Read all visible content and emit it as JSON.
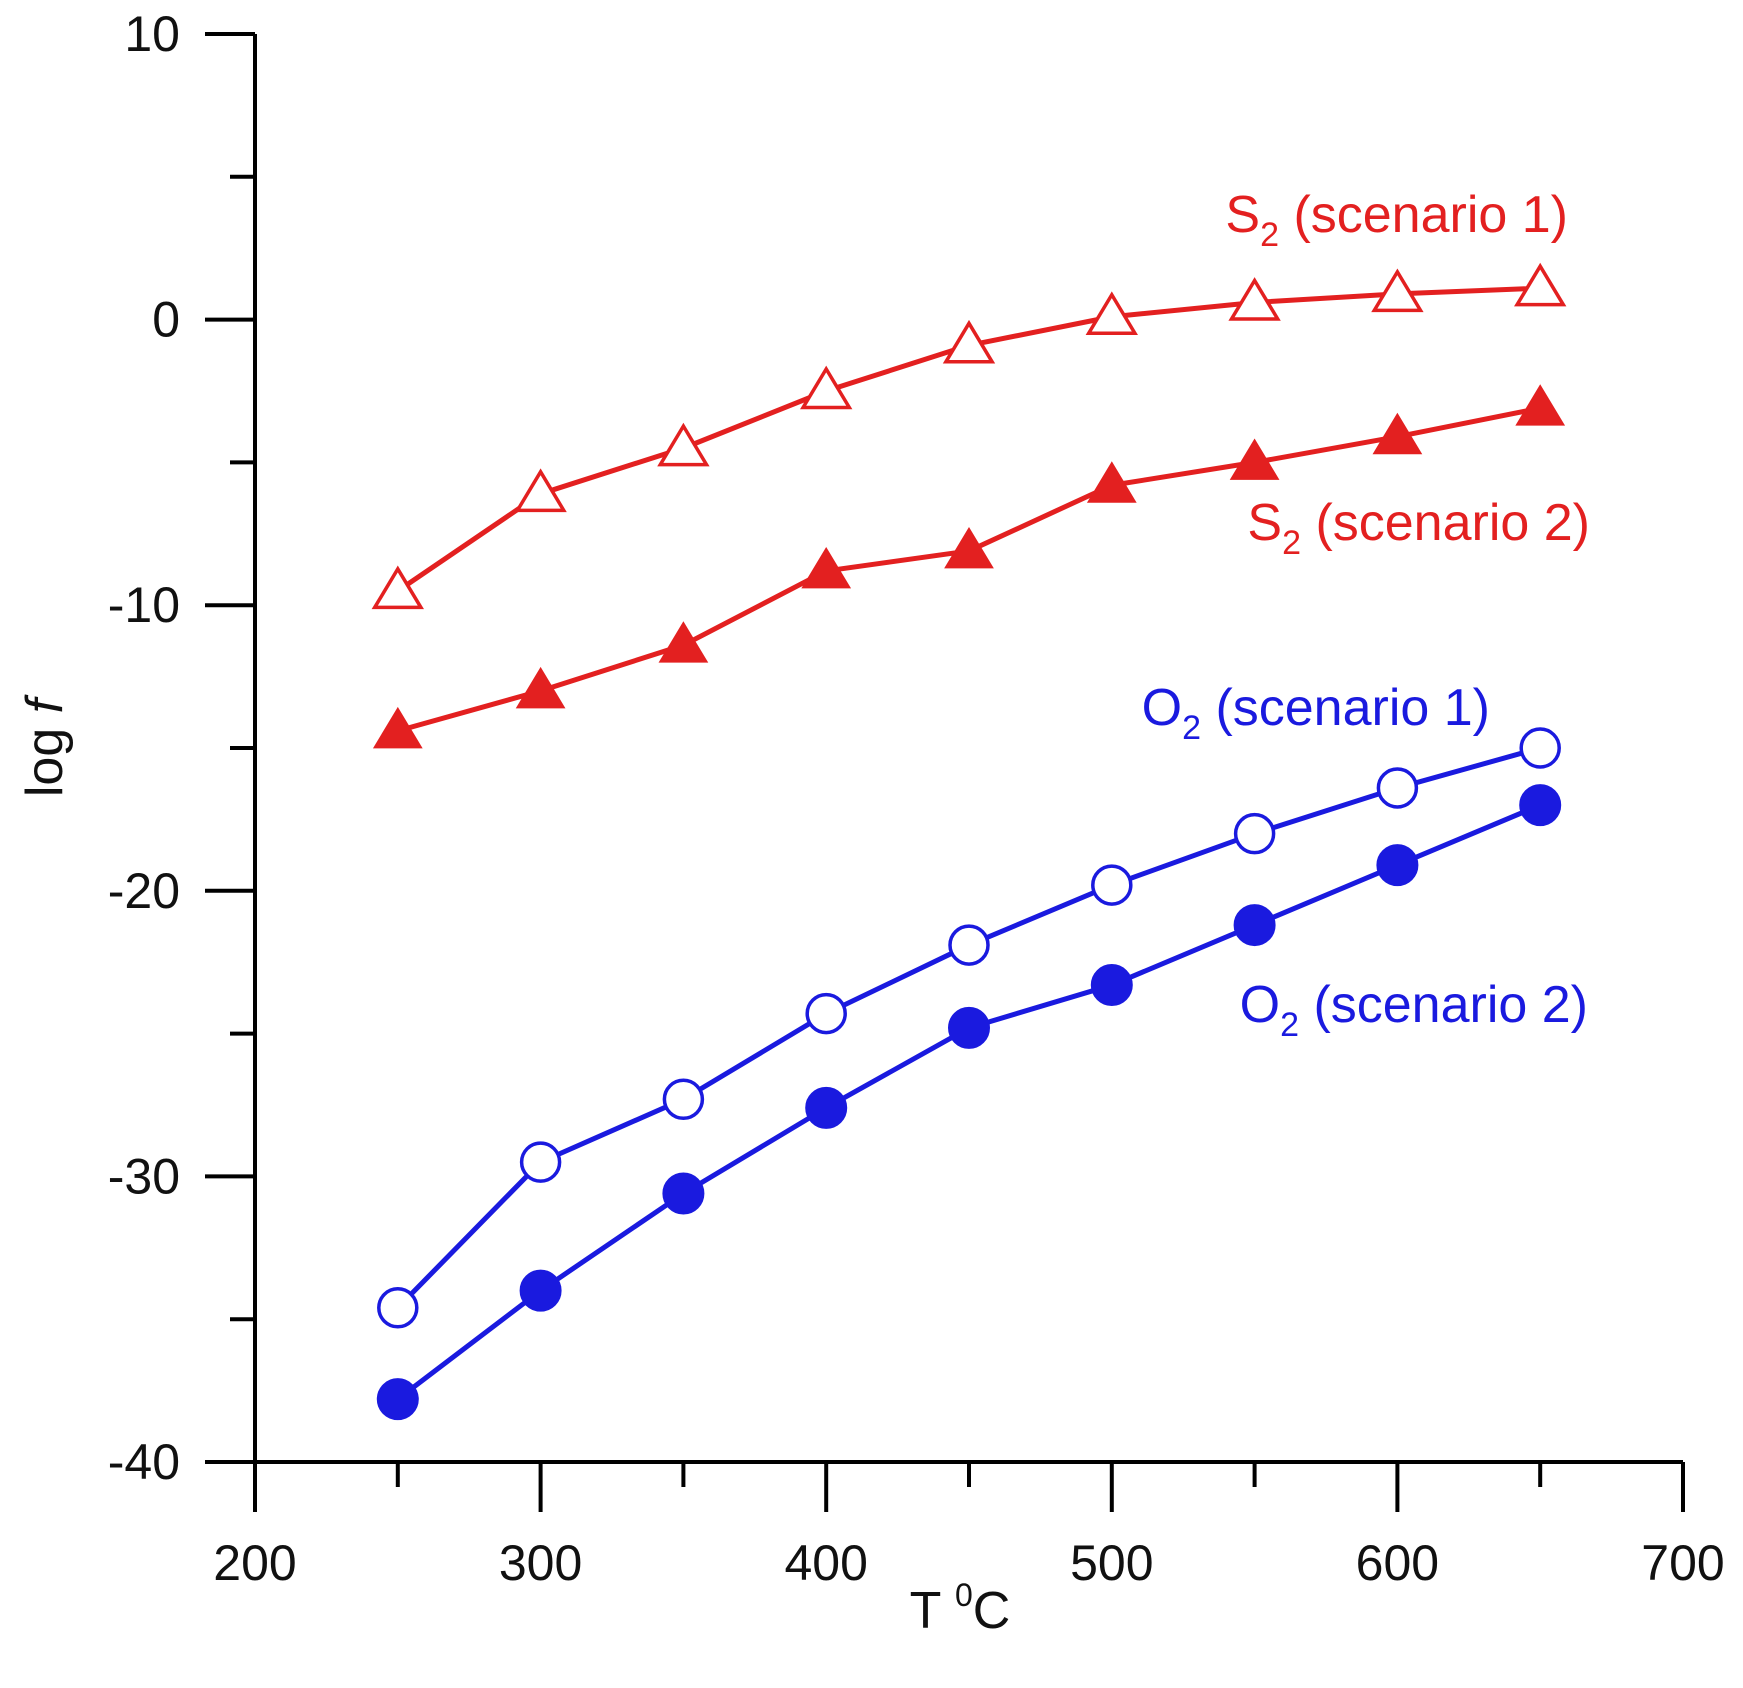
{
  "chart_data": {
    "type": "line",
    "title": "",
    "xlabel": {
      "main": "T ",
      "superscript": "0",
      "unit": "C"
    },
    "ylabel": {
      "main": "log ",
      "italic": "f"
    },
    "xlim": [
      200,
      700
    ],
    "ylim": [
      -40,
      10
    ],
    "xticks": [
      200,
      300,
      400,
      500,
      600,
      700
    ],
    "yticks": [
      10,
      0,
      -10,
      -20,
      -30,
      -40
    ],
    "x": [
      250,
      300,
      350,
      400,
      450,
      500,
      550,
      600,
      650
    ],
    "series": [
      {
        "name": "S2 (scenario 1)",
        "label": {
          "species": "S",
          "subscript": "2",
          "rest": " (scenario 1)"
        },
        "color": "#e32020",
        "marker": "open-triangle",
        "values": [
          -9.5,
          -6.1,
          -4.5,
          -2.5,
          -0.9,
          0.1,
          0.6,
          0.9,
          1.1
        ]
      },
      {
        "name": "S2 (scenario 2)",
        "label": {
          "species": "S",
          "subscript": "2",
          "rest": " (scenario 2)"
        },
        "color": "#e32020",
        "marker": "filled-triangle",
        "values": [
          -14.4,
          -13.0,
          -11.4,
          -8.8,
          -8.1,
          -5.8,
          -5.0,
          -4.1,
          -3.1
        ]
      },
      {
        "name": "O2 (scenario 1)",
        "label": {
          "species": "O",
          "subscript": "2",
          "rest": " (scenario 1)"
        },
        "color": "#1a1adf",
        "marker": "open-circle",
        "values": [
          -34.6,
          -29.5,
          -27.3,
          -24.3,
          -21.9,
          -19.8,
          -18.0,
          -16.4,
          -15.0
        ]
      },
      {
        "name": "O2 (scenario 2)",
        "label": {
          "species": "O",
          "subscript": "2",
          "rest": " (scenario 2)"
        },
        "color": "#1a1adf",
        "marker": "filled-circle",
        "values": [
          -37.8,
          -34.0,
          -30.6,
          -27.6,
          -24.8,
          -23.3,
          -21.2,
          -19.1,
          -17.0
        ]
      }
    ]
  }
}
